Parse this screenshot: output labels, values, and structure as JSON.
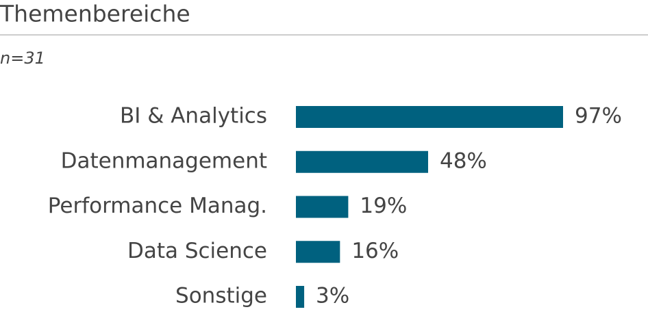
{
  "chart_data": {
    "type": "bar",
    "orientation": "horizontal",
    "title": "Themenbereiche",
    "subtitle": "n=31",
    "categories": [
      "BI & Analytics",
      "Datenmanagement",
      "Performance Manag.",
      "Data Science",
      "Sonstige"
    ],
    "values": [
      97,
      48,
      19,
      16,
      3
    ],
    "value_labels": [
      "97%",
      "48%",
      "19%",
      "16%",
      "3%"
    ],
    "color": "#00617f"
  }
}
